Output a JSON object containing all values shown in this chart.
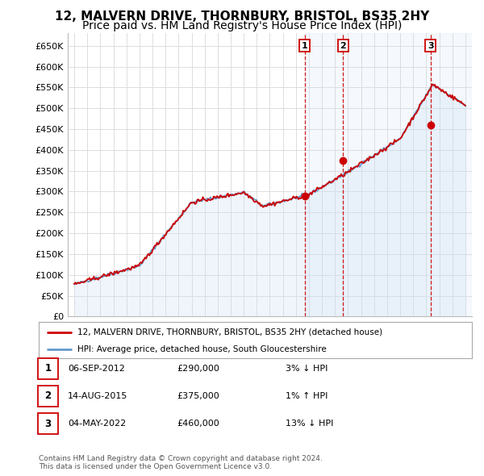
{
  "title": "12, MALVERN DRIVE, THORNBURY, BRISTOL, BS35 2HY",
  "subtitle": "Price paid vs. HM Land Registry's House Price Index (HPI)",
  "ylabel_ticks": [
    "£0",
    "£50K",
    "£100K",
    "£150K",
    "£200K",
    "£250K",
    "£300K",
    "£350K",
    "£400K",
    "£450K",
    "£500K",
    "£550K",
    "£600K",
    "£650K"
  ],
  "ytick_values": [
    0,
    50000,
    100000,
    150000,
    200000,
    250000,
    300000,
    350000,
    400000,
    450000,
    500000,
    550000,
    600000,
    650000
  ],
  "ylim": [
    0,
    680000
  ],
  "sale_date_nums": [
    2012.674,
    2015.621,
    2022.337
  ],
  "sale_prices": [
    290000,
    375000,
    460000
  ],
  "sale_labels": [
    "1",
    "2",
    "3"
  ],
  "hpi_color": "#6699cc",
  "hpi_fill_color": "#cce0f5",
  "sale_color": "#cc0000",
  "vline_color": "#cc0000",
  "background_color": "#ffffff",
  "grid_color": "#dddddd",
  "legend_label_sale": "12, MALVERN DRIVE, THORNBURY, BRISTOL, BS35 2HY (detached house)",
  "legend_label_hpi": "HPI: Average price, detached house, South Gloucestershire",
  "table_data": [
    {
      "label": "1",
      "date": "06-SEP-2012",
      "price": "£290,000",
      "hpi": "3% ↓ HPI"
    },
    {
      "label": "2",
      "date": "14-AUG-2015",
      "price": "£375,000",
      "hpi": "1% ↑ HPI"
    },
    {
      "label": "3",
      "date": "04-MAY-2022",
      "price": "£460,000",
      "hpi": "13% ↓ HPI"
    }
  ],
  "footnote": "Contains HM Land Registry data © Crown copyright and database right 2024.\nThis data is licensed under the Open Government Licence v3.0.",
  "title_fontsize": 11,
  "subtitle_fontsize": 10
}
